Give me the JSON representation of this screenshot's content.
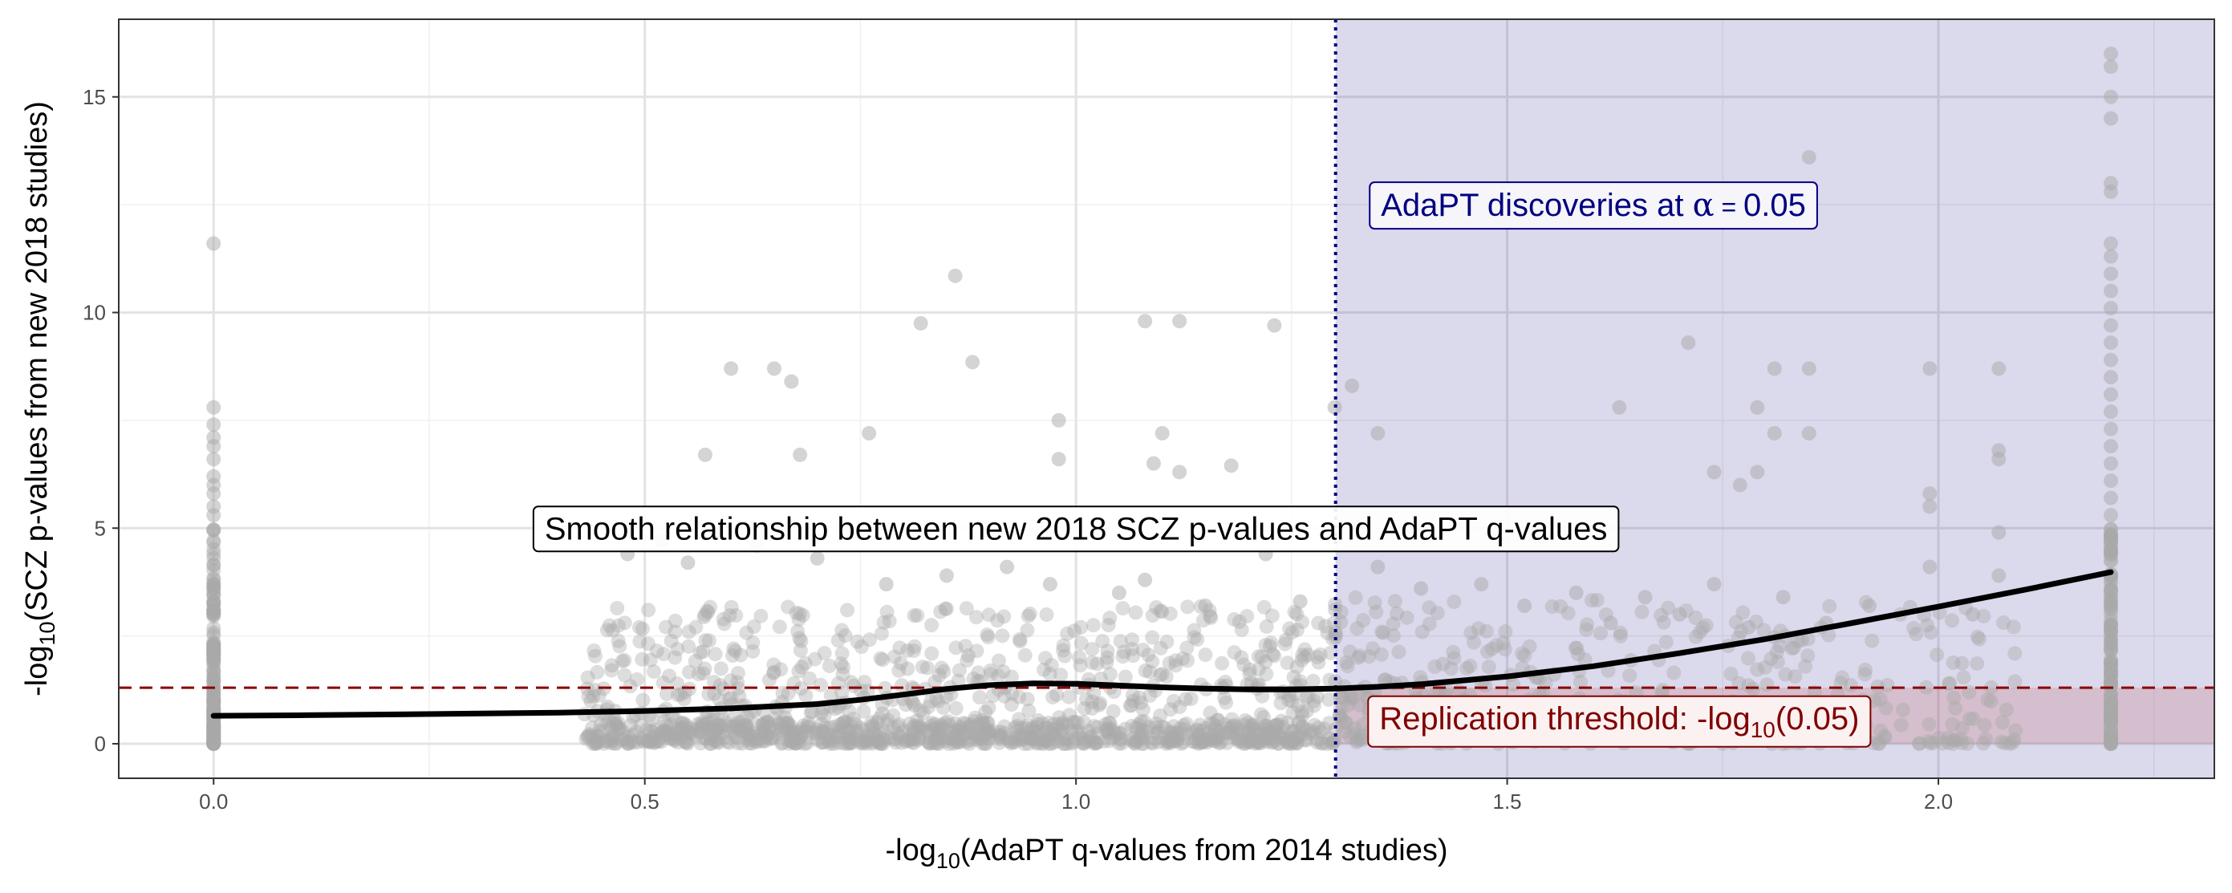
{
  "chart_data": {
    "type": "scatter",
    "xlabel": {
      "pre": "-log",
      "sub": "10",
      "post": "(AdaPT q-values from 2014 studies)"
    },
    "ylabel": {
      "pre": "-log",
      "sub": "10",
      "post": "(SCZ p-values from new 2018 studies)"
    },
    "xlim": [
      -0.11,
      2.32
    ],
    "ylim": [
      -0.8,
      16.8
    ],
    "x_ticks": [
      0.0,
      0.5,
      1.0,
      1.5,
      2.0
    ],
    "x_tick_labels": [
      "0.0",
      "0.5",
      "1.0",
      "1.5",
      "2.0"
    ],
    "y_ticks": [
      0,
      5,
      10,
      15
    ],
    "y_tick_labels": [
      "0",
      "5",
      "10",
      "15"
    ],
    "grid": true,
    "colors": {
      "points": "#a9a9a9",
      "smooth": "#000000",
      "discovery_region": "#2a1e8f",
      "discovery_line": "#000080",
      "threshold_region": "#c06060",
      "threshold_line": "#8b0000",
      "discovery_text": "#000080",
      "threshold_text": "#800000"
    },
    "discovery_threshold_x": 1.301,
    "replication_threshold_y": 1.301,
    "annotations": {
      "discovery": {
        "pre": "AdaPT discoveries at ",
        "alpha": "α",
        "eq": " = ",
        "value": "0.05",
        "x": 1.6,
        "y": 12.5
      },
      "smooth": {
        "text": "Smooth relationship between new 2018 SCZ p-values and AdaPT q-values",
        "x": 1.0,
        "y": 5.0
      },
      "replication": {
        "pre": "Replication threshold: -log",
        "sub": "10",
        "post": "(0.05)",
        "x": 1.63,
        "y": 0.6
      }
    },
    "smooth_curve": {
      "x": [
        0.0,
        0.1,
        0.2,
        0.3,
        0.4,
        0.5,
        0.6,
        0.7,
        0.75,
        0.8,
        0.85,
        0.9,
        0.95,
        1.0,
        1.05,
        1.1,
        1.15,
        1.2,
        1.25,
        1.3,
        1.35,
        1.4,
        1.5,
        1.6,
        1.7,
        1.8,
        1.9,
        2.0,
        2.1,
        2.2
      ],
      "y": [
        0.65,
        0.66,
        0.68,
        0.7,
        0.72,
        0.76,
        0.82,
        0.92,
        1.02,
        1.14,
        1.27,
        1.36,
        1.4,
        1.39,
        1.35,
        1.31,
        1.28,
        1.26,
        1.26,
        1.28,
        1.32,
        1.38,
        1.56,
        1.8,
        2.1,
        2.43,
        2.8,
        3.18,
        3.57,
        3.98
      ]
    },
    "scatter_points": [
      [
        0.0,
        11.6
      ],
      [
        0.0,
        7.8
      ],
      [
        0.0,
        7.4
      ],
      [
        0.0,
        7.1
      ],
      [
        0.0,
        6.9
      ],
      [
        0.0,
        6.6
      ],
      [
        0.0,
        6.2
      ],
      [
        0.0,
        6.0
      ],
      [
        0.0,
        5.8
      ],
      [
        0.0,
        5.5
      ],
      [
        0.0,
        5.3
      ],
      [
        0.6,
        8.7
      ],
      [
        0.65,
        8.7
      ],
      [
        0.67,
        8.4
      ],
      [
        0.57,
        6.7
      ],
      [
        0.68,
        6.7
      ],
      [
        0.76,
        7.2
      ],
      [
        0.82,
        9.75
      ],
      [
        0.86,
        10.85
      ],
      [
        0.88,
        8.85
      ],
      [
        0.98,
        7.5
      ],
      [
        0.98,
        6.6
      ],
      [
        1.08,
        9.8
      ],
      [
        1.12,
        9.8
      ],
      [
        1.1,
        7.2
      ],
      [
        1.09,
        6.5
      ],
      [
        1.12,
        6.3
      ],
      [
        1.18,
        6.45
      ],
      [
        1.23,
        9.7
      ],
      [
        1.3,
        7.8
      ],
      [
        1.32,
        8.3
      ],
      [
        1.35,
        7.2
      ],
      [
        1.63,
        7.8
      ],
      [
        1.71,
        9.3
      ],
      [
        1.74,
        6.3
      ],
      [
        1.77,
        6.0
      ],
      [
        1.79,
        7.8
      ],
      [
        1.79,
        6.3
      ],
      [
        1.81,
        8.7
      ],
      [
        1.81,
        7.2
      ],
      [
        1.85,
        8.7
      ],
      [
        1.85,
        7.2
      ],
      [
        1.85,
        13.6
      ],
      [
        1.99,
        8.7
      ],
      [
        1.99,
        5.8
      ],
      [
        1.99,
        5.5
      ],
      [
        2.07,
        8.7
      ],
      [
        2.07,
        6.8
      ],
      [
        2.07,
        6.6
      ],
      [
        2.07,
        4.9
      ],
      [
        2.2,
        16.0
      ],
      [
        2.2,
        15.7
      ],
      [
        2.2,
        15.0
      ],
      [
        2.2,
        14.5
      ],
      [
        2.2,
        13.0
      ],
      [
        2.2,
        12.8
      ],
      [
        2.2,
        11.6
      ],
      [
        2.2,
        11.3
      ],
      [
        2.2,
        10.9
      ],
      [
        2.2,
        10.5
      ],
      [
        2.2,
        10.1
      ],
      [
        2.2,
        9.7
      ],
      [
        2.2,
        9.3
      ],
      [
        2.2,
        8.9
      ],
      [
        2.2,
        8.5
      ],
      [
        2.2,
        8.1
      ],
      [
        2.2,
        7.7
      ],
      [
        2.2,
        7.3
      ],
      [
        2.2,
        6.9
      ],
      [
        2.2,
        6.5
      ],
      [
        2.2,
        6.1
      ],
      [
        2.2,
        5.7
      ],
      [
        2.2,
        5.3
      ],
      [
        0.48,
        4.4
      ],
      [
        0.52,
        4.7
      ],
      [
        0.55,
        4.2
      ],
      [
        0.63,
        4.6
      ],
      [
        0.7,
        4.3
      ],
      [
        0.78,
        3.7
      ],
      [
        0.85,
        3.9
      ],
      [
        0.92,
        4.1
      ],
      [
        0.97,
        3.7
      ],
      [
        1.05,
        3.5
      ],
      [
        1.08,
        3.8
      ],
      [
        1.15,
        3.2
      ],
      [
        1.22,
        4.4
      ],
      [
        1.26,
        3.3
      ],
      [
        1.35,
        4.1
      ],
      [
        1.4,
        3.6
      ],
      [
        1.47,
        3.7
      ],
      [
        1.52,
        3.2
      ],
      [
        1.58,
        3.5
      ],
      [
        1.62,
        2.8
      ],
      [
        1.66,
        3.4
      ],
      [
        1.7,
        3.0
      ],
      [
        1.74,
        3.7
      ],
      [
        1.78,
        2.7
      ],
      [
        1.82,
        3.4
      ],
      [
        1.87,
        2.8
      ],
      [
        1.92,
        3.2
      ],
      [
        1.99,
        4.1
      ],
      [
        2.04,
        3.0
      ],
      [
        2.07,
        3.9
      ],
      [
        2.2,
        4.8
      ],
      [
        2.2,
        4.4
      ],
      [
        2.2,
        3.9
      ],
      [
        2.2,
        3.5
      ],
      [
        2.2,
        3.0
      ]
    ]
  }
}
